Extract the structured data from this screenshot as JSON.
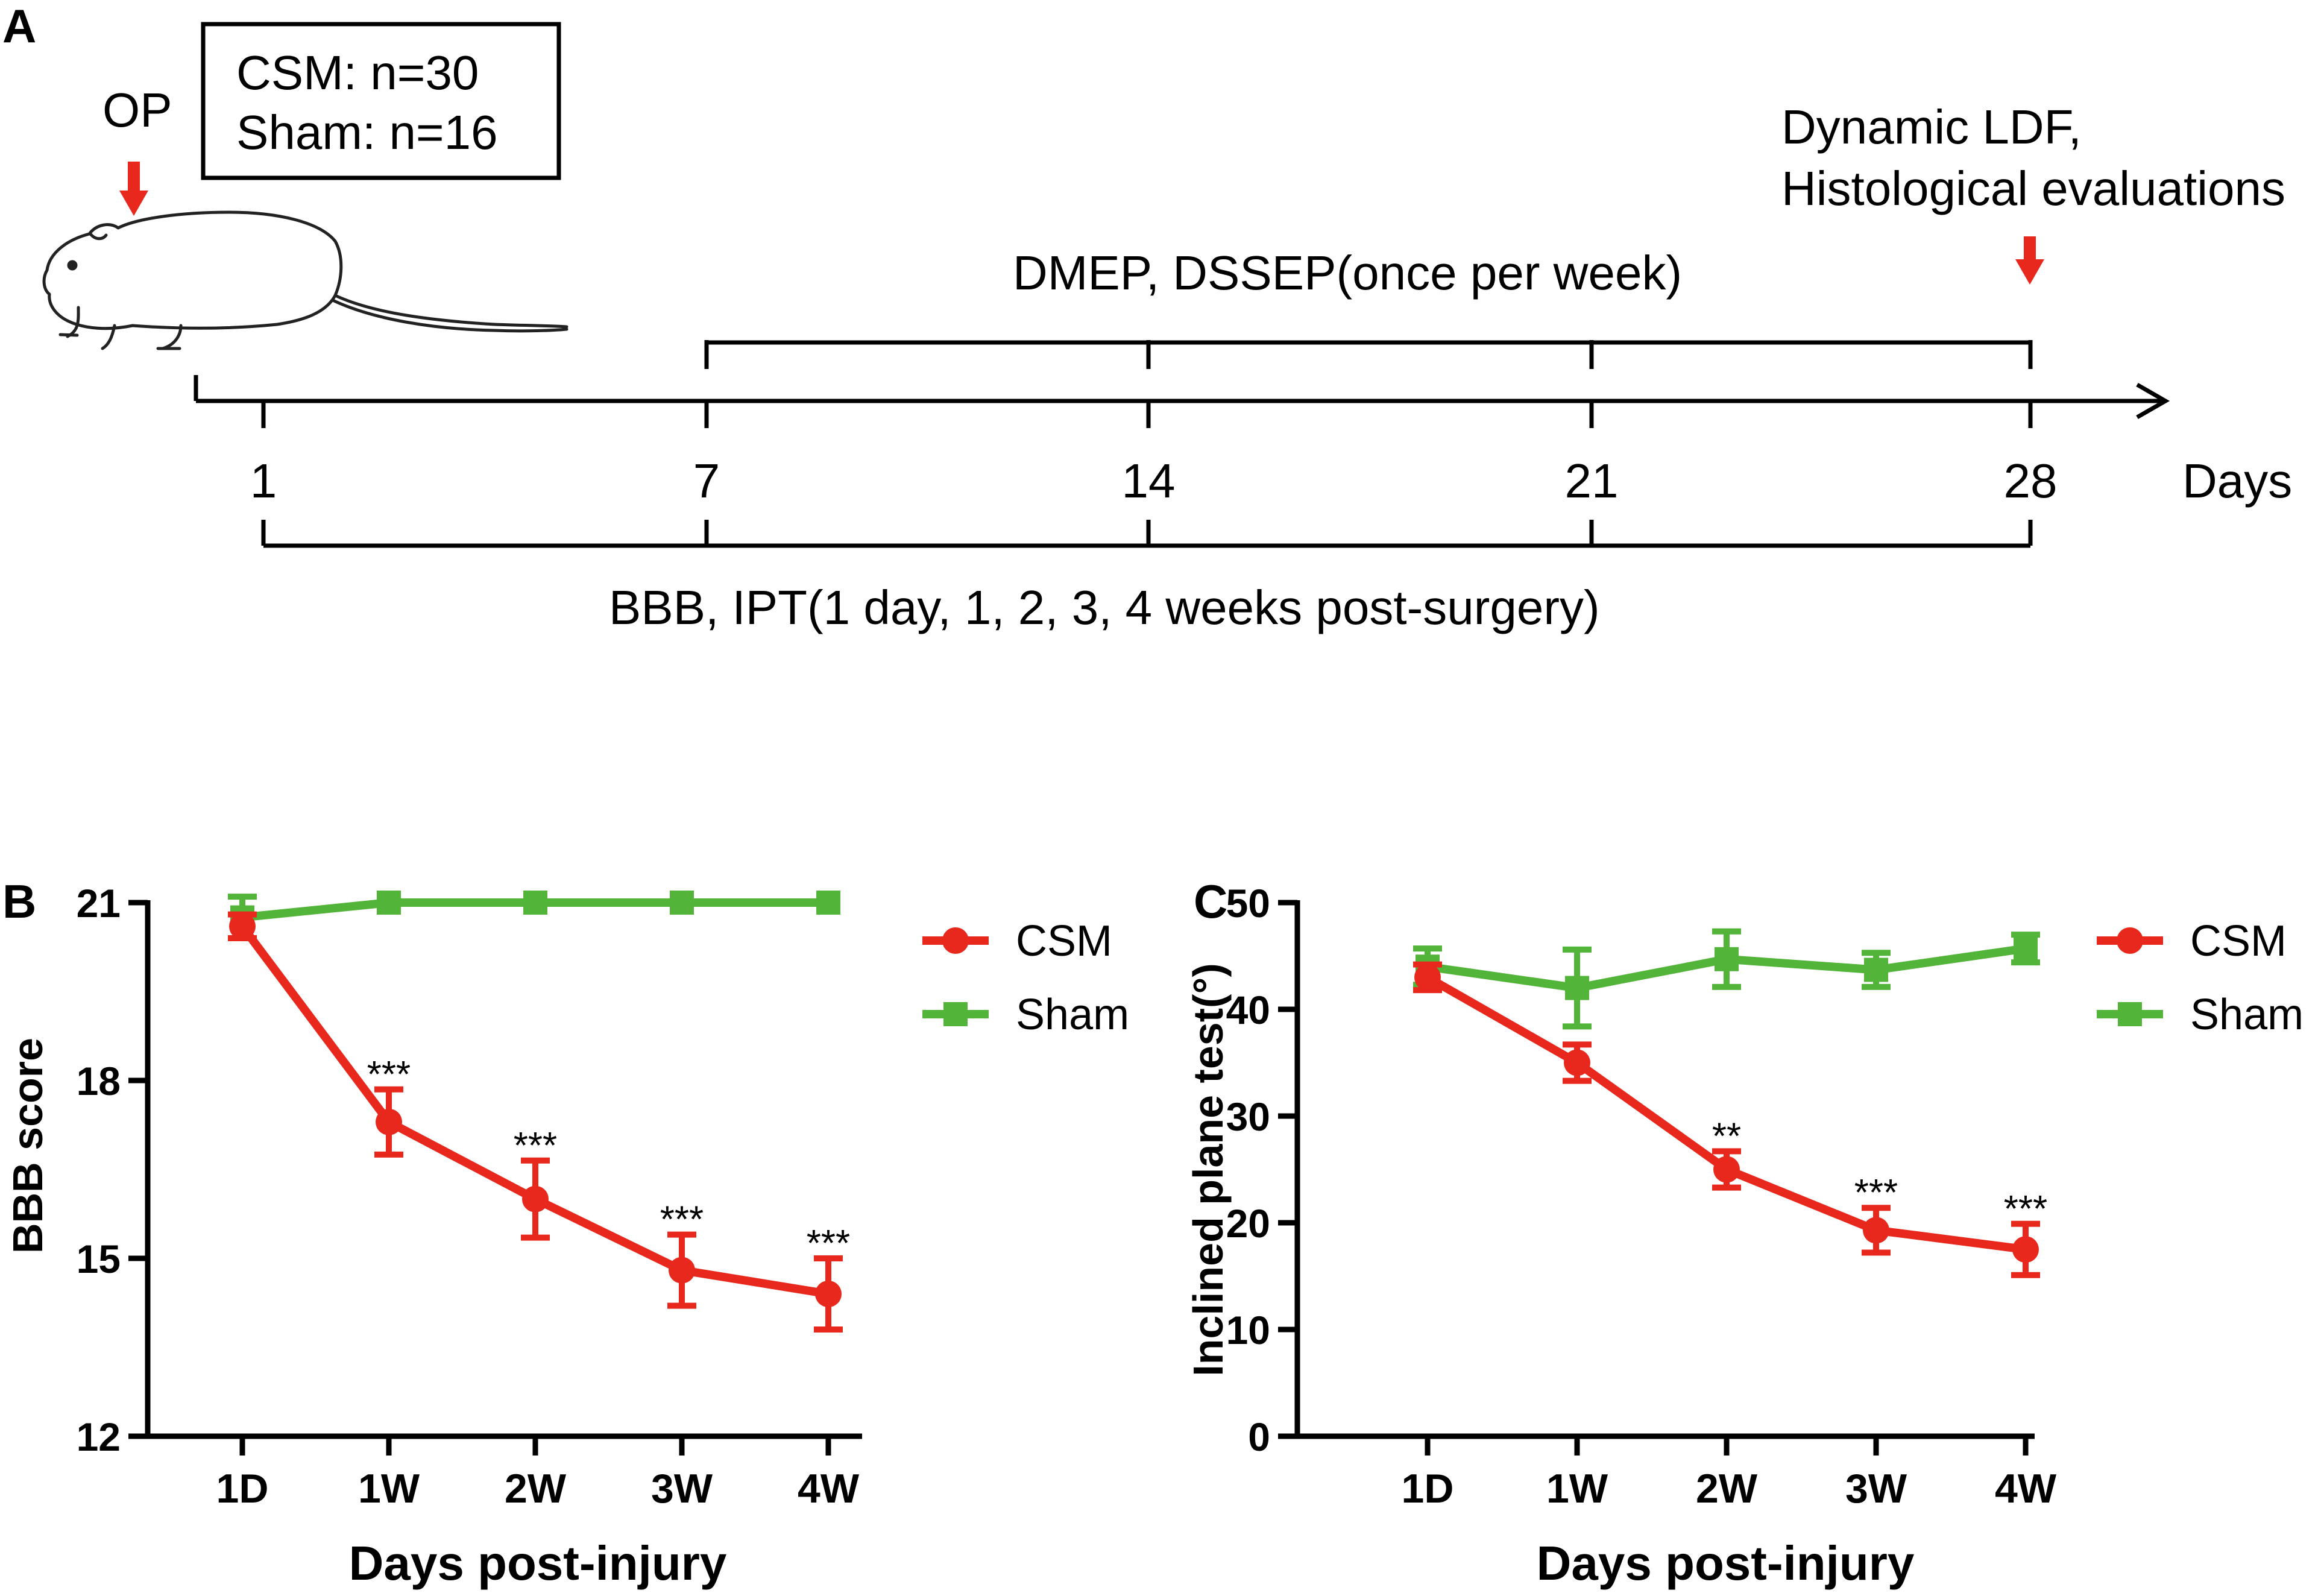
{
  "panel_a": {
    "label": "A",
    "op_label": "OP",
    "groups": [
      "CSM: n=30",
      "Sham: n=16"
    ],
    "end_event_lines": [
      "Dynamic LDF,",
      "Histological evaluations"
    ],
    "ep_label": "DMEP, DSSEP(once per week)",
    "timeline_ticks": [
      "1",
      "7",
      "14",
      "21",
      "28"
    ],
    "timeline_unit": "Days",
    "behavior_label": "BBB, IPT(1 day, 1, 2, 3, 4 weeks post-surgery)",
    "colors": {
      "arrow": "#e8281d"
    }
  },
  "chart_data": [
    {
      "panel": "B",
      "type": "line",
      "categories": [
        "1D",
        "1W",
        "2W",
        "3W",
        "4W"
      ],
      "ylabel": "BBB score",
      "xlabel": "Days post-injury",
      "ylim": [
        12,
        21
      ],
      "yticks": [
        "12",
        "15",
        "18",
        "21"
      ],
      "series": [
        {
          "name": "CSM",
          "color": "#e8281d",
          "marker": "circle",
          "values": [
            20.6,
            17.3,
            16.0,
            14.8,
            14.4
          ],
          "err": [
            0.2,
            0.55,
            0.65,
            0.6,
            0.6
          ],
          "sig": [
            "",
            "***",
            "***",
            "***",
            "***"
          ]
        },
        {
          "name": "Sham",
          "color": "#52b53a",
          "marker": "square",
          "values": [
            20.75,
            21.0,
            21.0,
            21.0,
            21.0
          ],
          "err": [
            0.35,
            0,
            0,
            0,
            0
          ],
          "sig": [
            "",
            "",
            "",
            "",
            ""
          ]
        }
      ],
      "legend": "top-right"
    },
    {
      "panel": "C",
      "type": "line",
      "categories": [
        "1D",
        "1W",
        "2W",
        "3W",
        "4W"
      ],
      "ylabel": "Inclined plane test(°)",
      "xlabel": "Days post-injury",
      "ylim": [
        0,
        50
      ],
      "yticks": [
        "0",
        "10",
        "20",
        "30",
        "40",
        "50"
      ],
      "series": [
        {
          "name": "CSM",
          "color": "#e8281d",
          "marker": "circle",
          "values": [
            43.0,
            35.0,
            25.0,
            19.3,
            17.5
          ],
          "err": [
            1.2,
            1.7,
            1.7,
            2.1,
            2.4
          ],
          "sig": [
            "",
            "",
            "**",
            "***",
            "***"
          ]
        },
        {
          "name": "Sham",
          "color": "#52b53a",
          "marker": "square",
          "values": [
            44.0,
            42.0,
            44.7,
            43.7,
            45.7
          ],
          "err": [
            1.7,
            3.6,
            2.6,
            1.6,
            1.3
          ],
          "sig": [
            "",
            "",
            "",
            "",
            ""
          ]
        }
      ],
      "legend": "top-right"
    }
  ]
}
